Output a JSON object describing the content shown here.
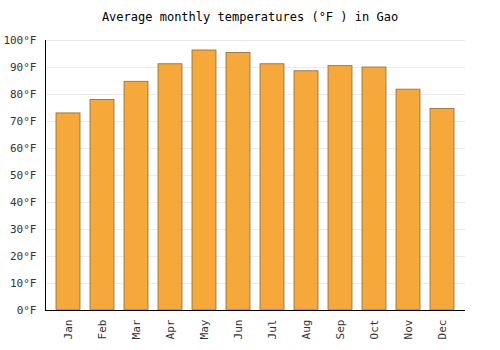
{
  "chart_data": {
    "type": "bar",
    "title": "Average monthly temperatures (°F ) in Gao",
    "categories": [
      "Jan",
      "Feb",
      "Mar",
      "Apr",
      "May",
      "Jun",
      "Jul",
      "Aug",
      "Sep",
      "Oct",
      "Nov",
      "Dec"
    ],
    "values": [
      73,
      78,
      84.7,
      91.2,
      96.3,
      95.4,
      91.2,
      88.6,
      90.5,
      90,
      81.8,
      74.6
    ],
    "color": "#f7a83a",
    "ylim": [
      0,
      100
    ],
    "yticks": [
      {
        "value": 0,
        "label": "0°F"
      },
      {
        "value": 10,
        "label": "10°F"
      },
      {
        "value": 20,
        "label": "20°F"
      },
      {
        "value": 30,
        "label": "30°F"
      },
      {
        "value": 40,
        "label": "40°F"
      },
      {
        "value": 50,
        "label": "50°F"
      },
      {
        "value": 60,
        "label": "60°F"
      },
      {
        "value": 70,
        "label": "70°F"
      },
      {
        "value": 80,
        "label": "80°F"
      },
      {
        "value": 90,
        "label": "90°F"
      },
      {
        "value": 100,
        "label": "100°F"
      }
    ],
    "grid": true
  }
}
